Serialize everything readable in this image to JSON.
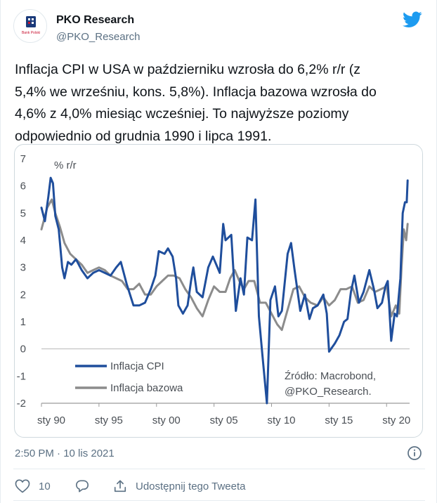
{
  "author": {
    "name": "PKO Research",
    "handle": "@PKO_Research",
    "avatar_caption": "Bank Polski"
  },
  "tweet": {
    "lines": [
      "Inflacja CPI w USA w październiku wzrosła do 6,2% r/r (z",
      "5,4% we wrześniu, kons. 5,8%). Inflacja bazowa wzrosła do",
      "4,6% z 4,0% miesiąc wcześniej. To najwyższe poziomy",
      "odpowiednio od grudnia 1990 i lipca 1991."
    ]
  },
  "chart_data": {
    "type": "line",
    "ylabel": "% r/r",
    "ylim": [
      -2,
      7
    ],
    "xlim": [
      1990,
      2022
    ],
    "yticks": [
      "7",
      "6",
      "5",
      "4",
      "3",
      "2",
      "1",
      "0",
      "-1",
      "-2"
    ],
    "xticks": [
      {
        "label": "sty 90",
        "x": 1990
      },
      {
        "label": "sty 95",
        "x": 1995
      },
      {
        "label": "sty 00",
        "x": 2000
      },
      {
        "label": "sty 05",
        "x": 2005
      },
      {
        "label": "sty 10",
        "x": 2010
      },
      {
        "label": "sty 15",
        "x": 2015
      },
      {
        "label": "sty 20",
        "x": 2020
      }
    ],
    "source_lines": [
      "Źródło: Macrobond,",
      "@PKO_Research."
    ],
    "colors": {
      "cpi": "#1f4e9c",
      "core": "#8c8c8c"
    },
    "series": [
      {
        "name": "Inflacja CPI",
        "points": [
          [
            1990.0,
            5.2
          ],
          [
            1990.3,
            4.7
          ],
          [
            1990.6,
            5.6
          ],
          [
            1990.8,
            6.3
          ],
          [
            1991.0,
            6.1
          ],
          [
            1991.2,
            4.9
          ],
          [
            1991.5,
            4.4
          ],
          [
            1991.8,
            3.0
          ],
          [
            1992.0,
            2.6
          ],
          [
            1992.3,
            3.2
          ],
          [
            1992.6,
            3.1
          ],
          [
            1993.0,
            3.3
          ],
          [
            1993.5,
            2.9
          ],
          [
            1994.0,
            2.6
          ],
          [
            1994.5,
            2.8
          ],
          [
            1995.0,
            2.9
          ],
          [
            1995.5,
            2.8
          ],
          [
            1996.0,
            2.7
          ],
          [
            1996.5,
            3.0
          ],
          [
            1996.9,
            3.2
          ],
          [
            1997.4,
            2.4
          ],
          [
            1998.0,
            1.6
          ],
          [
            1998.5,
            1.6
          ],
          [
            1999.0,
            1.7
          ],
          [
            1999.5,
            2.2
          ],
          [
            1999.9,
            2.7
          ],
          [
            2000.2,
            3.6
          ],
          [
            2000.7,
            3.5
          ],
          [
            2001.0,
            3.7
          ],
          [
            2001.4,
            3.4
          ],
          [
            2001.7,
            2.6
          ],
          [
            2001.9,
            1.6
          ],
          [
            2002.3,
            1.3
          ],
          [
            2002.7,
            1.6
          ],
          [
            2003.0,
            2.5
          ],
          [
            2003.2,
            3.0
          ],
          [
            2003.5,
            2.1
          ],
          [
            2004.0,
            1.9
          ],
          [
            2004.5,
            3.0
          ],
          [
            2004.9,
            3.4
          ],
          [
            2005.5,
            2.8
          ],
          [
            2005.8,
            4.6
          ],
          [
            2006.0,
            4.0
          ],
          [
            2006.5,
            4.2
          ],
          [
            2006.9,
            1.4
          ],
          [
            2007.3,
            2.6
          ],
          [
            2007.6,
            2.0
          ],
          [
            2007.9,
            4.1
          ],
          [
            2008.3,
            4.0
          ],
          [
            2008.6,
            5.5
          ],
          [
            2008.9,
            1.2
          ],
          [
            2009.2,
            -0.2
          ],
          [
            2009.6,
            -2.0
          ],
          [
            2009.9,
            1.8
          ],
          [
            2010.3,
            2.3
          ],
          [
            2010.6,
            1.2
          ],
          [
            2010.9,
            1.4
          ],
          [
            2011.4,
            3.5
          ],
          [
            2011.7,
            3.9
          ],
          [
            2012.0,
            2.9
          ],
          [
            2012.5,
            1.4
          ],
          [
            2012.9,
            2.0
          ],
          [
            2013.3,
            1.1
          ],
          [
            2013.6,
            1.5
          ],
          [
            2014.0,
            1.6
          ],
          [
            2014.5,
            2.0
          ],
          [
            2014.8,
            1.3
          ],
          [
            2015.0,
            -0.1
          ],
          [
            2015.5,
            0.2
          ],
          [
            2015.9,
            0.5
          ],
          [
            2016.3,
            1.0
          ],
          [
            2016.6,
            1.1
          ],
          [
            2016.9,
            2.1
          ],
          [
            2017.2,
            2.7
          ],
          [
            2017.6,
            1.7
          ],
          [
            2018.0,
            2.1
          ],
          [
            2018.5,
            2.9
          ],
          [
            2018.9,
            2.2
          ],
          [
            2019.2,
            1.5
          ],
          [
            2019.6,
            1.7
          ],
          [
            2019.9,
            2.3
          ],
          [
            2020.1,
            2.5
          ],
          [
            2020.4,
            0.3
          ],
          [
            2020.7,
            1.3
          ],
          [
            2020.9,
            1.2
          ],
          [
            2021.2,
            2.6
          ],
          [
            2021.4,
            5.0
          ],
          [
            2021.6,
            5.4
          ],
          [
            2021.75,
            5.4
          ],
          [
            2021.83,
            6.2
          ]
        ]
      },
      {
        "name": "Inflacja bazowa",
        "points": [
          [
            1990.0,
            4.4
          ],
          [
            1990.5,
            5.2
          ],
          [
            1990.9,
            5.5
          ],
          [
            1991.2,
            5.0
          ],
          [
            1991.6,
            4.5
          ],
          [
            1992.0,
            3.9
          ],
          [
            1992.5,
            3.5
          ],
          [
            1993.0,
            3.3
          ],
          [
            1993.5,
            3.1
          ],
          [
            1994.0,
            2.8
          ],
          [
            1994.5,
            2.9
          ],
          [
            1995.0,
            3.0
          ],
          [
            1995.5,
            2.9
          ],
          [
            1996.0,
            2.7
          ],
          [
            1996.5,
            2.6
          ],
          [
            1997.0,
            2.5
          ],
          [
            1997.5,
            2.2
          ],
          [
            1998.0,
            2.2
          ],
          [
            1998.5,
            2.4
          ],
          [
            1999.0,
            2.0
          ],
          [
            1999.5,
            2.0
          ],
          [
            2000.0,
            2.3
          ],
          [
            2000.5,
            2.5
          ],
          [
            2001.0,
            2.7
          ],
          [
            2001.5,
            2.7
          ],
          [
            2002.0,
            2.6
          ],
          [
            2002.5,
            2.2
          ],
          [
            2003.0,
            1.9
          ],
          [
            2003.5,
            1.5
          ],
          [
            2004.0,
            1.2
          ],
          [
            2004.5,
            1.8
          ],
          [
            2005.0,
            2.3
          ],
          [
            2005.5,
            2.1
          ],
          [
            2006.0,
            2.1
          ],
          [
            2006.4,
            2.6
          ],
          [
            2006.8,
            2.9
          ],
          [
            2007.2,
            2.5
          ],
          [
            2007.6,
            2.2
          ],
          [
            2008.0,
            2.5
          ],
          [
            2008.5,
            2.5
          ],
          [
            2009.0,
            1.7
          ],
          [
            2009.5,
            1.7
          ],
          [
            2010.0,
            1.3
          ],
          [
            2010.5,
            0.9
          ],
          [
            2010.9,
            0.7
          ],
          [
            2011.5,
            1.6
          ],
          [
            2011.9,
            2.2
          ],
          [
            2012.4,
            2.3
          ],
          [
            2012.9,
            1.9
          ],
          [
            2013.4,
            1.7
          ],
          [
            2014.0,
            1.6
          ],
          [
            2014.5,
            1.9
          ],
          [
            2015.0,
            1.6
          ],
          [
            2015.5,
            1.8
          ],
          [
            2016.0,
            2.2
          ],
          [
            2016.5,
            2.2
          ],
          [
            2017.0,
            2.3
          ],
          [
            2017.5,
            1.7
          ],
          [
            2018.0,
            1.8
          ],
          [
            2018.5,
            2.3
          ],
          [
            2019.0,
            2.1
          ],
          [
            2019.5,
            2.2
          ],
          [
            2020.0,
            2.3
          ],
          [
            2020.4,
            1.2
          ],
          [
            2020.8,
            1.6
          ],
          [
            2021.1,
            1.3
          ],
          [
            2021.3,
            3.0
          ],
          [
            2021.5,
            4.4
          ],
          [
            2021.7,
            4.0
          ],
          [
            2021.83,
            4.6
          ]
        ]
      }
    ]
  },
  "meta": {
    "timestamp": "2:50 PM · 10 lis 2021"
  },
  "actions": {
    "like_count": "10",
    "share_label": "Udostępnij tego Tweeta"
  }
}
